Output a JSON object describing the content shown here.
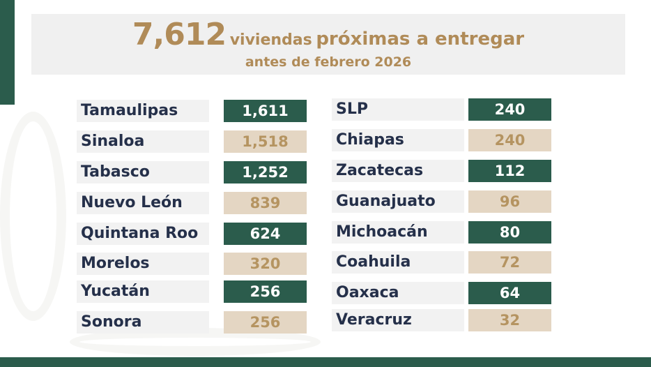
{
  "header": {
    "total": "7,612",
    "word1": "viviendas",
    "rest": "próximas a entregar",
    "subtitle": "antes de febrero 2026"
  },
  "colors": {
    "green": "#2b5c4c",
    "tan": "#e4d6c3",
    "tan_text": "#b59461",
    "gold": "#b08b58",
    "navy": "#25304a"
  },
  "left_column": [
    {
      "state": "Tamaulipas",
      "value": "1,611",
      "style": "green"
    },
    {
      "state": "Sinaloa",
      "value": "1,518",
      "style": "tan"
    },
    {
      "state": "Tabasco",
      "value": "1,252",
      "style": "green"
    },
    {
      "state": "Nuevo León",
      "value": "839",
      "style": "tan"
    },
    {
      "state": "Quintana Roo",
      "value": "624",
      "style": "green"
    },
    {
      "state": "Morelos",
      "value": "320",
      "style": "tan"
    },
    {
      "state": "Yucatán",
      "value": "256",
      "style": "green"
    },
    {
      "state": "Sonora",
      "value": "256",
      "style": "tan"
    }
  ],
  "right_column": [
    {
      "state": "SLP",
      "value": "240",
      "style": "green"
    },
    {
      "state": "Chiapas",
      "value": "240",
      "style": "tan"
    },
    {
      "state": "Zacatecas",
      "value": "112",
      "style": "green"
    },
    {
      "state": "Guanajuato",
      "value": "96",
      "style": "tan"
    },
    {
      "state": "Michoacán",
      "value": "80",
      "style": "green"
    },
    {
      "state": "Coahuila",
      "value": "72",
      "style": "tan"
    },
    {
      "state": "Oaxaca",
      "value": "64",
      "style": "green"
    },
    {
      "state": "Veracruz",
      "value": "32",
      "style": "tan"
    }
  ]
}
